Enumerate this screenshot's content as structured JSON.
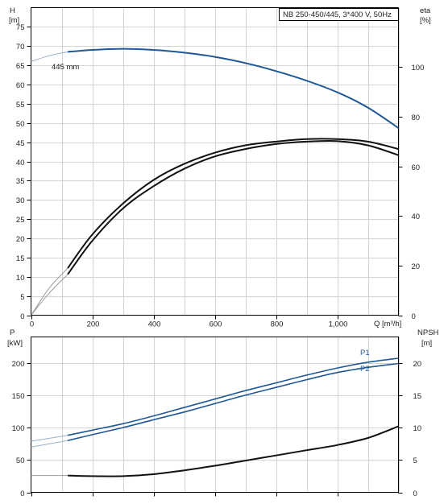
{
  "colors": {
    "blue": "#1f5896",
    "blue_light": "#9aaecd",
    "black": "#111111",
    "grey": "#9a9a9a",
    "grid": "#d4d4d4"
  },
  "chart_data": [
    {
      "type": "line",
      "title": "NB 250-450/445, 3*400 V, 50Hz",
      "xlabel": "Q [m³/h]",
      "ylabel_left_name": "H",
      "ylabel_left_unit": "[m]",
      "ylabel_right_name": "eta",
      "ylabel_right_unit": "[%]",
      "xlim": [
        0,
        1200
      ],
      "ylim_left": [
        0,
        80
      ],
      "ylim_right": [
        0,
        124
      ],
      "x_ticks": [
        0,
        200,
        400,
        600,
        800,
        1000
      ],
      "x_tick_labels": [
        "0",
        "200",
        "400",
        "600",
        "800",
        "1,000"
      ],
      "y_ticks_left": [
        0,
        5,
        10,
        15,
        20,
        25,
        30,
        35,
        40,
        45,
        50,
        55,
        60,
        65,
        70,
        75
      ],
      "y_ticks_right": [
        0,
        20,
        40,
        60,
        80,
        100
      ],
      "grid": true,
      "annotations": [
        "445 mm"
      ],
      "series": [
        {
          "name": "445 mm",
          "axis": "left",
          "x": [
            120,
            200,
            300,
            400,
            500,
            600,
            700,
            800,
            900,
            1000,
            1100,
            1200
          ],
          "values": [
            68.5,
            69.0,
            69.3,
            69.0,
            68.3,
            67.2,
            65.6,
            63.5,
            61.0,
            58.0,
            54.0,
            48.7
          ],
          "extension_x": [
            0,
            60,
            120
          ],
          "extension_values": [
            66.0,
            67.5,
            68.5
          ]
        },
        {
          "name": "",
          "axis": "right",
          "x": [
            120,
            200,
            300,
            400,
            500,
            600,
            700,
            800,
            900,
            1000,
            1100,
            1200
          ],
          "values": [
            16.5,
            30.0,
            43.0,
            52.0,
            59.0,
            64.0,
            67.0,
            69.0,
            70.0,
            70.2,
            68.5,
            64.5
          ],
          "extension_x": [
            0,
            60,
            120
          ],
          "extension_values": [
            0,
            9,
            16.5
          ]
        },
        {
          "name": "",
          "axis": "right",
          "x": [
            120,
            200,
            300,
            400,
            500,
            600,
            700,
            800,
            900,
            1000,
            1100,
            1200
          ],
          "values": [
            19.0,
            32.5,
            45.0,
            54.5,
            61.0,
            65.5,
            68.5,
            70.0,
            71.0,
            71.0,
            70.0,
            67.0
          ],
          "extension_x": [
            0,
            60,
            120
          ],
          "extension_values": [
            0,
            11,
            19.0
          ]
        }
      ]
    },
    {
      "type": "line",
      "title": "",
      "xlabel": "",
      "ylabel_left_name": "P",
      "ylabel_left_unit": "[kW]",
      "ylabel_right_name": "NPSH",
      "ylabel_right_unit": "[m]",
      "xlim": [
        0,
        1200
      ],
      "ylim_left": [
        0,
        240
      ],
      "ylim_right": [
        0,
        24
      ],
      "y_ticks_left": [
        0,
        50,
        100,
        150,
        200
      ],
      "y_ticks_right": [
        0,
        5,
        10,
        15,
        20
      ],
      "grid": true,
      "series": [
        {
          "name": "P1",
          "axis": "left",
          "x": [
            120,
            200,
            300,
            400,
            500,
            600,
            700,
            800,
            900,
            1000,
            1100,
            1200
          ],
          "values": [
            88,
            96,
            106,
            118,
            131,
            144,
            157,
            169,
            181,
            192,
            201,
            207
          ],
          "extension_x": [
            0,
            120
          ],
          "extension_values": [
            79,
            88
          ]
        },
        {
          "name": "P2",
          "axis": "left",
          "x": [
            120,
            200,
            300,
            400,
            500,
            600,
            700,
            800,
            900,
            1000,
            1100,
            1200
          ],
          "values": [
            80,
            89,
            100,
            112,
            124,
            137,
            150,
            162,
            174,
            185,
            193,
            199
          ],
          "extension_x": [
            0,
            120
          ],
          "extension_values": [
            70,
            80
          ]
        },
        {
          "name": "",
          "axis": "right",
          "x": [
            120,
            200,
            300,
            400,
            500,
            600,
            700,
            800,
            900,
            1000,
            1100,
            1200
          ],
          "values": [
            2.6,
            2.5,
            2.5,
            2.8,
            3.4,
            4.1,
            4.9,
            5.7,
            6.5,
            7.3,
            8.4,
            10.2
          ],
          "extension_x": [
            0,
            120
          ],
          "extension_values": [
            2.6,
            2.6
          ]
        }
      ]
    }
  ]
}
